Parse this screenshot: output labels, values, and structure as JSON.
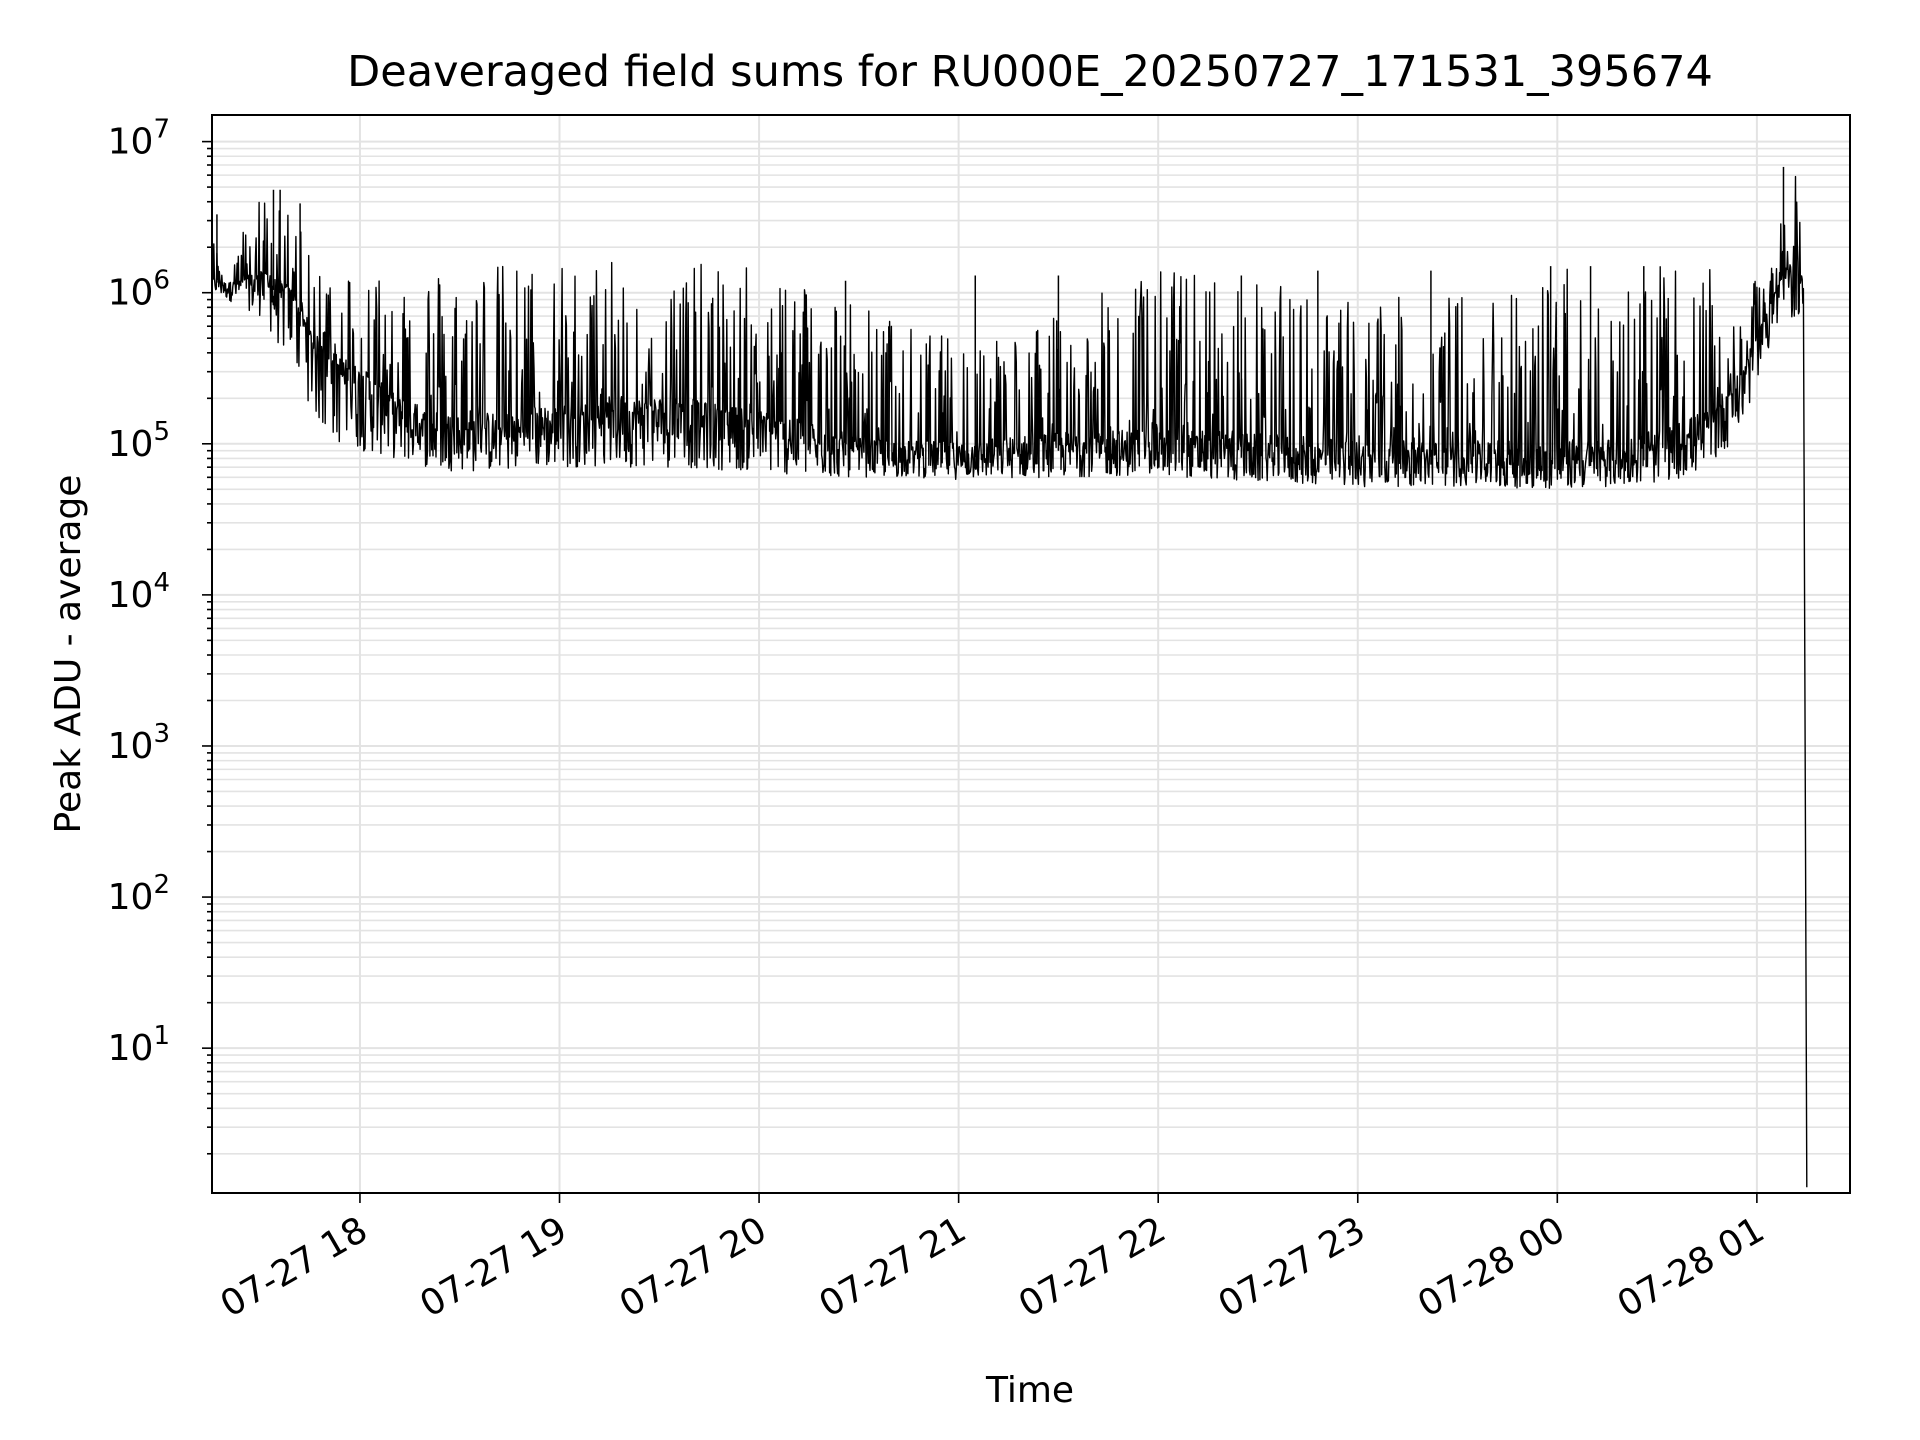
{
  "chart_data": {
    "type": "line",
    "title": "Deaveraged field sums for RU000E_20250727_171531_395674",
    "xlabel": "Time",
    "ylabel": "Peak ADU - average",
    "yscale": "log",
    "ylim": [
      1.1,
      15000000
    ],
    "xlim": [
      "2025-07-27 17:15:31",
      "2025-07-28 01:28:00"
    ],
    "grid": true,
    "x_tick_labels": [
      "07-27 18",
      "07-27 19",
      "07-27 20",
      "07-27 21",
      "07-27 22",
      "07-27 23",
      "07-28 00",
      "07-28 01"
    ],
    "x_ticks": [
      "2025-07-27 18:00",
      "2025-07-27 19:00",
      "2025-07-27 20:00",
      "2025-07-27 21:00",
      "2025-07-27 22:00",
      "2025-07-27 23:00",
      "2025-07-28 00:00",
      "2025-07-28 01:00"
    ],
    "y_ticks": [
      {
        "base": "10",
        "exp": "1",
        "value": 10
      },
      {
        "base": "10",
        "exp": "2",
        "value": 100
      },
      {
        "base": "10",
        "exp": "3",
        "value": 1000
      },
      {
        "base": "10",
        "exp": "4",
        "value": 10000
      },
      {
        "base": "10",
        "exp": "5",
        "value": 100000
      },
      {
        "base": "10",
        "exp": "6",
        "value": 1000000
      },
      {
        "base": "10",
        "exp": "7",
        "value": 10000000
      }
    ],
    "series": [
      {
        "color": "#000000",
        "x": [
          "2025-07-27 17:15:31",
          "2025-07-27 17:20",
          "2025-07-27 17:30",
          "2025-07-27 17:40",
          "2025-07-27 17:45",
          "2025-07-27 17:50",
          "2025-07-27 18:00",
          "2025-07-27 18:10",
          "2025-07-27 18:20",
          "2025-07-27 18:30",
          "2025-07-27 18:45",
          "2025-07-27 19:00",
          "2025-07-27 19:30",
          "2025-07-27 20:00",
          "2025-07-27 20:15",
          "2025-07-27 20:30",
          "2025-07-27 20:45",
          "2025-07-27 21:00",
          "2025-07-27 21:30",
          "2025-07-27 22:00",
          "2025-07-27 22:30",
          "2025-07-27 23:00",
          "2025-07-27 23:30",
          "2025-07-28 00:00",
          "2025-07-28 00:15",
          "2025-07-28 00:30",
          "2025-07-28 00:45",
          "2025-07-28 00:55",
          "2025-07-28 01:05",
          "2025-07-28 01:12",
          "2025-07-28 01:14",
          "2025-07-28 01:15"
        ],
        "y": [
          1200000,
          1100000,
          1150000,
          900000,
          500000,
          350000,
          250000,
          160000,
          120000,
          110000,
          115000,
          130000,
          150000,
          120000,
          95000,
          80000,
          80000,
          80000,
          90000,
          85000,
          80000,
          75000,
          72000,
          70000,
          72000,
          80000,
          120000,
          250000,
          900000,
          1500000,
          1000000,
          1.2
        ],
        "envelope_low": [
          1000000,
          900000,
          700000,
          300000,
          180000,
          100000,
          90000,
          80000,
          70000,
          65000,
          65000,
          70000,
          70000,
          65000,
          60000,
          60000,
          60000,
          58000,
          60000,
          62000,
          55000,
          52000,
          52000,
          50000,
          52000,
          55000,
          65000,
          120000,
          500000,
          700000,
          700000,
          1.2
        ],
        "envelope_high": [
          2400000,
          1500000,
          4800000,
          3500000,
          1700000,
          1500000,
          1600000,
          1600000,
          1500000,
          1600000,
          1600000,
          1600000,
          1600000,
          1500000,
          1400000,
          900000,
          600000,
          500000,
          700000,
          1600000,
          1200000,
          900000,
          1000000,
          1500000,
          1500000,
          1500000,
          1500000,
          800000,
          2000000,
          6800000,
          3000000,
          1.2
        ],
        "spikes": [
          {
            "x": "2025-07-27 17:17",
            "y": 3300000
          },
          {
            "x": "2025-07-27 17:34",
            "y": 4800000
          },
          {
            "x": "2025-07-27 17:36",
            "y": 4800000
          },
          {
            "x": "2025-07-27 17:42",
            "y": 3900000
          },
          {
            "x": "2025-07-27 20:26",
            "y": 1200000
          },
          {
            "x": "2025-07-27 20:39",
            "y": 600000
          },
          {
            "x": "2025-07-27 21:05",
            "y": 1300000
          },
          {
            "x": "2025-07-27 21:30",
            "y": 1300000
          },
          {
            "x": "2025-07-27 22:25",
            "y": 1300000
          },
          {
            "x": "2025-07-27 22:48",
            "y": 1400000
          },
          {
            "x": "2025-07-27 23:22",
            "y": 1400000
          },
          {
            "x": "2025-07-27 23:58",
            "y": 1500000
          },
          {
            "x": "2025-07-28 00:10",
            "y": 1500000
          },
          {
            "x": "2025-07-28 00:26",
            "y": 1500000
          },
          {
            "x": "2025-07-28 01:08",
            "y": 6800000
          }
        ]
      }
    ]
  }
}
